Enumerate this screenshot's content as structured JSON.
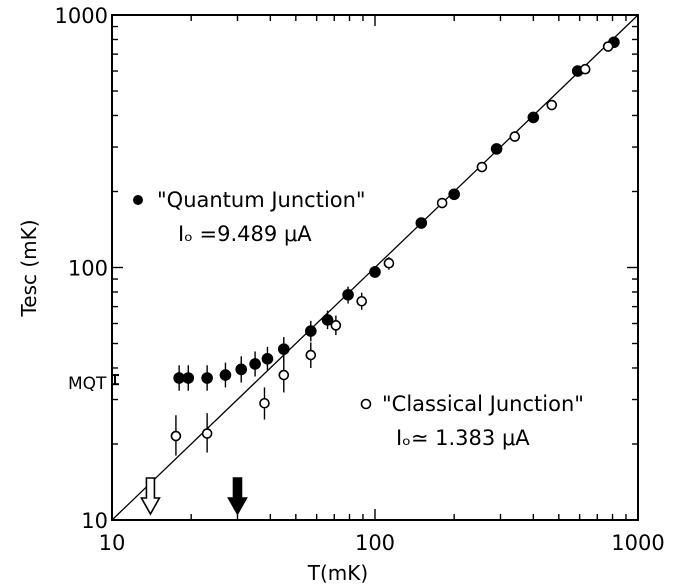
{
  "chart_data": {
    "type": "scatter",
    "xlabel": "T(mK)",
    "ylabel": "Tesc (mK)",
    "xscale": "log",
    "yscale": "log",
    "xlim": [
      10,
      1000
    ],
    "ylim": [
      10,
      1000
    ],
    "x_ticks": [
      10,
      100,
      1000
    ],
    "x_tick_labels": [
      "10",
      "100",
      "1000"
    ],
    "y_ticks": [
      10,
      100,
      1000
    ],
    "y_tick_labels": [
      "10",
      "100",
      "1000"
    ],
    "grid": false,
    "reference_line": {
      "from": [
        10,
        10
      ],
      "to": [
        1000,
        1000
      ]
    },
    "mqt_label": "MQT",
    "mqt_value": 36,
    "mqt_range": [
      34.5,
      37.5
    ],
    "series": [
      {
        "name": "\"Quantum Junction\"",
        "marker": "filled",
        "annotation_line2": "Iₒ =9.489 μA",
        "points": [
          {
            "x": 18,
            "y": 36.5,
            "err": [
              32.5,
              41
            ]
          },
          {
            "x": 19.5,
            "y": 36.5,
            "err": [
              32.5,
              41
            ]
          },
          {
            "x": 23,
            "y": 36.5,
            "err": [
              32.5,
              41
            ]
          },
          {
            "x": 27,
            "y": 37.5,
            "err": [
              33.5,
              42
            ]
          },
          {
            "x": 31,
            "y": 39.5,
            "err": [
              35,
              44.5
            ]
          },
          {
            "x": 35,
            "y": 41.5,
            "err": [
              37,
              46.5
            ]
          },
          {
            "x": 39,
            "y": 43.5,
            "err": [
              39,
              48.5
            ]
          },
          {
            "x": 45,
            "y": 47.5,
            "err": [
              42.5,
              53
            ]
          },
          {
            "x": 57,
            "y": 56,
            "err": [
              51,
              61.5
            ]
          },
          {
            "x": 66,
            "y": 62,
            "err": [
              57,
              67.5
            ]
          },
          {
            "x": 79,
            "y": 78,
            "err": [
              72,
              84
            ]
          },
          {
            "x": 100,
            "y": 96,
            "err": [
              91,
              101
            ]
          },
          {
            "x": 150,
            "y": 150
          },
          {
            "x": 200,
            "y": 195
          },
          {
            "x": 290,
            "y": 295
          },
          {
            "x": 400,
            "y": 393
          },
          {
            "x": 590,
            "y": 600
          },
          {
            "x": 810,
            "y": 780
          }
        ]
      },
      {
        "name": "\"Classical Junction\"",
        "marker": "open",
        "annotation_line2": "Iₒ≃ 1.383 μA",
        "points": [
          {
            "x": 17.5,
            "y": 21.5,
            "err": [
              18,
              26
            ]
          },
          {
            "x": 23,
            "y": 22,
            "err": [
              18.5,
              26.5
            ]
          },
          {
            "x": 38,
            "y": 29,
            "err": [
              25,
              33.5
            ]
          },
          {
            "x": 45,
            "y": 37.5,
            "err": [
              32,
              44
            ]
          },
          {
            "x": 57,
            "y": 45,
            "err": [
              40,
              50.5
            ]
          },
          {
            "x": 71,
            "y": 59,
            "err": [
              54,
              64.5
            ]
          },
          {
            "x": 89,
            "y": 73.5,
            "err": [
              68,
              79.5
            ]
          },
          {
            "x": 113,
            "y": 104,
            "err": [
              98,
              110
            ]
          },
          {
            "x": 180,
            "y": 180
          },
          {
            "x": 255,
            "y": 250
          },
          {
            "x": 340,
            "y": 330
          },
          {
            "x": 470,
            "y": 440
          },
          {
            "x": 630,
            "y": 610
          },
          {
            "x": 770,
            "y": 750
          }
        ]
      }
    ],
    "arrows": [
      {
        "x": 14,
        "style": "open"
      },
      {
        "x": 30,
        "style": "filled"
      }
    ]
  }
}
